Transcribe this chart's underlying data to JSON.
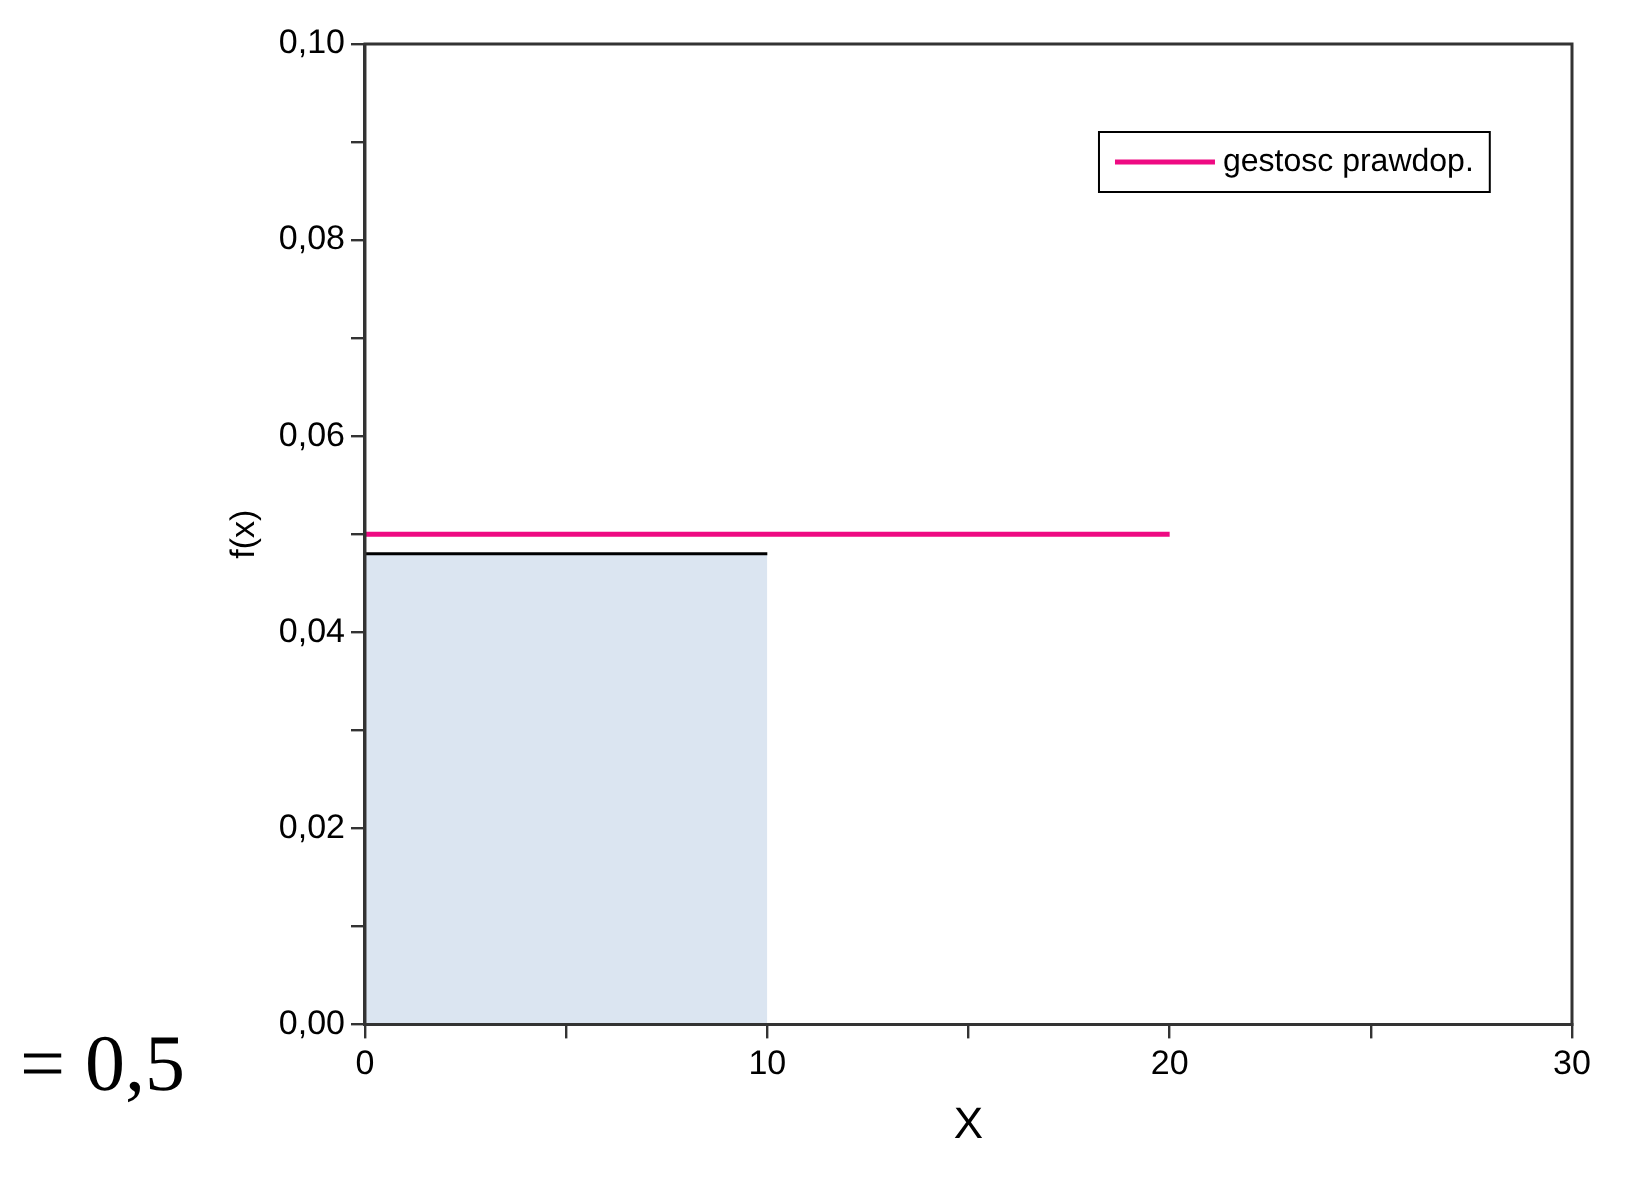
{
  "chart_data": {
    "type": "line",
    "xlabel": "X",
    "ylabel": "f(x)",
    "series": [
      {
        "type": "area",
        "color": "#dbe5f1",
        "x": [
          0,
          10
        ],
        "values": [
          0.048,
          0.048
        ]
      },
      {
        "type": "line",
        "name": "gestosc prawdop.",
        "color": "#ee0a82",
        "x": [
          0,
          20
        ],
        "values": [
          0.05,
          0.05
        ]
      }
    ],
    "xlim": [
      0,
      30
    ],
    "xticks": [
      0,
      {
        "value": 5,
        "label": null
      },
      10,
      {
        "value": 15,
        "label": null
      },
      20,
      {
        "value": 25,
        "label": null
      },
      30
    ],
    "ylim": [
      0,
      0.1
    ],
    "yticks": [
      {
        "value": 0,
        "label": "0,00"
      },
      {
        "value": 0.01,
        "label": null
      },
      {
        "value": 0.02,
        "label": "0,02"
      },
      {
        "value": 0.03,
        "label": null
      },
      {
        "value": 0.04,
        "label": "0,04"
      },
      {
        "value": 0.05,
        "label": null
      },
      {
        "value": 0.06,
        "label": "0,06"
      },
      {
        "value": 0.07,
        "label": null
      },
      {
        "value": 0.08,
        "label": "0,08"
      },
      {
        "value": 0.09,
        "label": null
      },
      {
        "value": 0.1,
        "label": "0,10"
      }
    ],
    "annotations": [
      "= 0,5"
    ],
    "legend": "top right",
    "marker": "none",
    "grid": false
  }
}
